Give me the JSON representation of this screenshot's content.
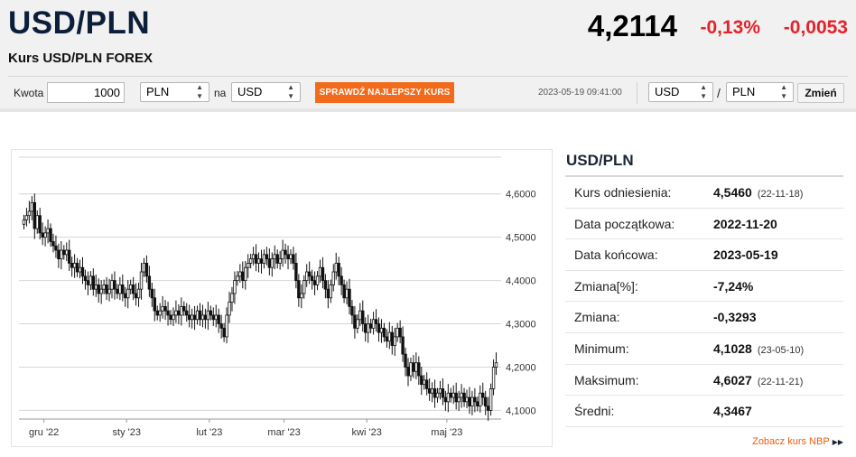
{
  "header": {
    "pair": "USD/PLN",
    "subtitle": "Kurs USD/PLN FOREX",
    "price": "4,2114",
    "change_pct": "-0,13%",
    "change_abs": "-0,0053"
  },
  "converter": {
    "amount_label": "Kwota",
    "amount_value": "1000",
    "from_currency": "PLN",
    "on_label": "na",
    "to_currency": "USD",
    "best_rate_button": "SPRAWDŹ NAJLEPSZY KURS"
  },
  "pair_select": {
    "timestamp": "2023-05-19 09:41:00",
    "base": "USD",
    "slash": "/",
    "quote": "PLN",
    "change_button": "Zmień"
  },
  "chart_data": {
    "type": "candlestick",
    "title": "",
    "x_tick_labels": [
      "gru '22",
      "sty '23",
      "lut '23",
      "mar '23",
      "kwi '23",
      "maj '23"
    ],
    "y_tick_labels": [
      "4,6000",
      "4,5000",
      "4,4000",
      "4,3000",
      "4,2000",
      "4,1000"
    ],
    "y_ticks": [
      4.6,
      4.5,
      4.4,
      4.3,
      4.2,
      4.1
    ],
    "ylim": [
      4.08,
      4.685
    ],
    "grid": true,
    "close_series": [
      4.54,
      4.55,
      4.56,
      4.58,
      4.52,
      4.55,
      4.51,
      4.5,
      4.51,
      4.52,
      4.49,
      4.48,
      4.47,
      4.45,
      4.47,
      4.46,
      4.47,
      4.44,
      4.43,
      4.44,
      4.42,
      4.43,
      4.41,
      4.4,
      4.39,
      4.41,
      4.38,
      4.39,
      4.37,
      4.38,
      4.39,
      4.37,
      4.38,
      4.4,
      4.38,
      4.37,
      4.39,
      4.37,
      4.36,
      4.38,
      4.39,
      4.37,
      4.36,
      4.38,
      4.42,
      4.44,
      4.41,
      4.38,
      4.36,
      4.33,
      4.32,
      4.33,
      4.34,
      4.33,
      4.32,
      4.31,
      4.32,
      4.33,
      4.32,
      4.34,
      4.33,
      4.32,
      4.31,
      4.32,
      4.31,
      4.33,
      4.31,
      4.32,
      4.31,
      4.33,
      4.32,
      4.31,
      4.32,
      4.3,
      4.29,
      4.27,
      4.32,
      4.35,
      4.37,
      4.4,
      4.41,
      4.42,
      4.4,
      4.43,
      4.44,
      4.45,
      4.46,
      4.44,
      4.45,
      4.44,
      4.46,
      4.45,
      4.43,
      4.45,
      4.46,
      4.44,
      4.45,
      4.47,
      4.46,
      4.45,
      4.46,
      4.44,
      4.4,
      4.36,
      4.37,
      4.4,
      4.42,
      4.41,
      4.4,
      4.39,
      4.41,
      4.43,
      4.4,
      4.38,
      4.36,
      4.39,
      4.42,
      4.44,
      4.41,
      4.39,
      4.36,
      4.38,
      4.34,
      4.32,
      4.29,
      4.31,
      4.33,
      4.3,
      4.28,
      4.3,
      4.29,
      4.31,
      4.3,
      4.28,
      4.29,
      4.27,
      4.26,
      4.28,
      4.25,
      4.27,
      4.29,
      4.27,
      4.23,
      4.2,
      4.18,
      4.21,
      4.19,
      4.21,
      4.18,
      4.16,
      4.17,
      4.15,
      4.14,
      4.15,
      4.13,
      4.14,
      4.15,
      4.13,
      4.12,
      4.14,
      4.13,
      4.14,
      4.12,
      4.13,
      4.14,
      4.12,
      4.13,
      4.11,
      4.13,
      4.12,
      4.11,
      4.14,
      4.13,
      4.11,
      4.1,
      4.15,
      4.2,
      4.21
    ]
  },
  "stats": {
    "title": "USD/PLN",
    "rows": [
      {
        "key": "Kurs odniesienia:",
        "value": "4,5460",
        "date": "(22-11-18)"
      },
      {
        "key": "Data początkowa:",
        "value": "2022-11-20",
        "date": ""
      },
      {
        "key": "Data końcowa:",
        "value": "2023-05-19",
        "date": ""
      },
      {
        "key": "Zmiana[%]:",
        "value": "-7,24%",
        "date": ""
      },
      {
        "key": "Zmiana:",
        "value": "-0,3293",
        "date": ""
      },
      {
        "key": "Minimum:",
        "value": "4,1028",
        "date": "(23-05-10)"
      },
      {
        "key": "Maksimum:",
        "value": "4,6027",
        "date": "(22-11-21)"
      },
      {
        "key": "Średni:",
        "value": "4,3467",
        "date": ""
      }
    ],
    "nbp_link": "Zobacz kurs NBP",
    "nbp_icon": "double-triangle-right-icon"
  },
  "colors": {
    "title": "#0d1e3b",
    "negative": "#e3232b",
    "accent": "#f26a1b",
    "candle": "#111111"
  }
}
